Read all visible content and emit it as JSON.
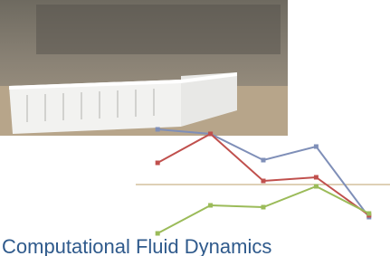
{
  "title": "Computational Fluid Dynamics",
  "chart_data": {
    "type": "line",
    "categories": [
      null,
      null,
      null,
      null,
      null
    ],
    "ylim": [
      0,
      1.4
    ],
    "series": [
      {
        "color": "#7f8fb8",
        "values": [
          1.27,
          1.22,
          0.93,
          1.08,
          0.3
        ]
      },
      {
        "color": "#c0504d",
        "values": [
          0.9,
          1.22,
          0.7,
          0.74,
          0.32
        ]
      },
      {
        "color": "#9bbb59",
        "values": [
          0.12,
          0.43,
          0.41,
          0.64,
          0.34
        ]
      }
    ]
  }
}
